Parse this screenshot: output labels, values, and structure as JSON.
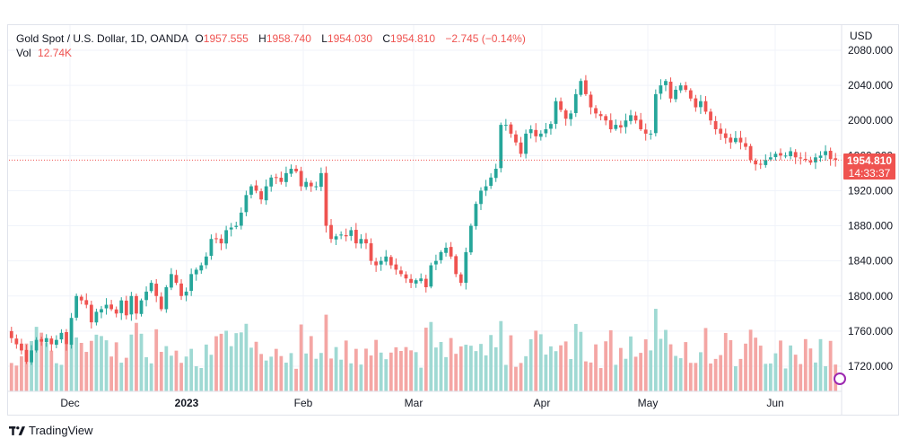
{
  "legend": {
    "symbol": "Gold Spot / U.S. Dollar, 1D, OANDA",
    "o_label": "O",
    "o_value": "1957.555",
    "h_label": "H",
    "h_value": "1958.740",
    "l_label": "L",
    "l_value": "1954.030",
    "c_label": "C",
    "c_value": "1954.810",
    "change": "−2.745 (−0.14%)",
    "vol_label": "Vol",
    "vol_value": "12.74K"
  },
  "axis": {
    "currency": "USD",
    "price_tag": "1954.810",
    "countdown": "14:33:37",
    "y_ticks": [
      "2080.000",
      "2040.000",
      "2000.000",
      "1960.000",
      "1920.000",
      "1880.000",
      "1840.000",
      "1800.000",
      "1760.000",
      "1720.000"
    ],
    "x_ticks": [
      "Dec",
      "2023",
      "Feb",
      "Mar",
      "Apr",
      "May",
      "Jun"
    ]
  },
  "branding": {
    "name": "TradingView"
  },
  "colors": {
    "up": "#26a69a",
    "down": "#ef5350",
    "vol_up": "#9fd9d3",
    "vol_down": "#f4a6a4"
  },
  "chart_data": {
    "type": "candlestick",
    "title": "Gold Spot / U.S. Dollar, 1D, OANDA",
    "ylabel": "USD",
    "ylim": [
      1700,
      2080
    ],
    "last_price": 1954.81,
    "closes": [
      1752,
      1745,
      1738,
      1725,
      1738,
      1750,
      1748,
      1752,
      1745,
      1750,
      1758,
      1745,
      1775,
      1800,
      1795,
      1790,
      1770,
      1782,
      1785,
      1790,
      1785,
      1780,
      1795,
      1778,
      1800,
      1780,
      1795,
      1805,
      1815,
      1800,
      1785,
      1810,
      1825,
      1815,
      1800,
      1805,
      1825,
      1830,
      1835,
      1845,
      1865,
      1865,
      1860,
      1875,
      1878,
      1880,
      1895,
      1915,
      1925,
      1920,
      1910,
      1925,
      1935,
      1935,
      1930,
      1940,
      1945,
      1942,
      1925,
      1930,
      1925,
      1925,
      1940,
      1880,
      1865,
      1868,
      1870,
      1868,
      1875,
      1860,
      1865,
      1860,
      1840,
      1835,
      1840,
      1845,
      1835,
      1830,
      1825,
      1820,
      1815,
      1818,
      1820,
      1810,
      1835,
      1840,
      1850,
      1855,
      1845,
      1825,
      1815,
      1850,
      1880,
      1905,
      1920,
      1925,
      1935,
      1945,
      1995,
      1995,
      1985,
      1975,
      1962,
      1985,
      1990,
      1982,
      1985,
      1990,
      1996,
      2022,
      2012,
      2002,
      2008,
      2030,
      2045,
      2030,
      2015,
      2008,
      2005,
      2000,
      1990,
      1995,
      1992,
      2000,
      2006,
      2000,
      1990,
      1985,
      1985,
      2030,
      2040,
      2045,
      2025,
      2035,
      2040,
      2035,
      2025,
      2015,
      2022,
      2010,
      2000,
      1990,
      1985,
      1980,
      1975,
      1980,
      1975,
      1970,
      1955,
      1950,
      1950,
      1955,
      1958,
      1962,
      1960,
      1960,
      1965,
      1958,
      1957,
      1955,
      1952,
      1958,
      1960,
      1965,
      1956,
      1955
    ]
  }
}
